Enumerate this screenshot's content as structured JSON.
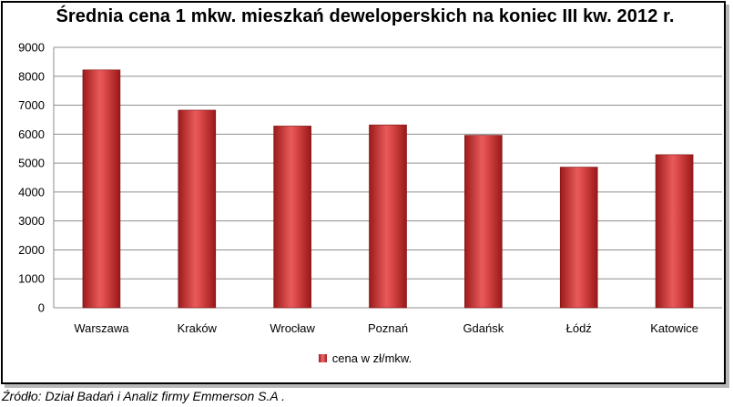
{
  "chart_data": {
    "type": "bar",
    "title": "Średnia cena 1 mkw. mieszkań deweloperskich na koniec III kw. 2012 r.",
    "categories": [
      "Warszawa",
      "Kraków",
      "Wrocław",
      "Poznań",
      "Gdańsk",
      "Łódź",
      "Katowice"
    ],
    "series": [
      {
        "name": "cena w zł/mkw.",
        "values": [
          8220,
          6830,
          6280,
          6320,
          5960,
          4860,
          5290
        ]
      }
    ],
    "ylim": [
      0,
      9000
    ],
    "yticks": [
      0,
      1000,
      2000,
      3000,
      4000,
      5000,
      6000,
      7000,
      8000,
      9000
    ],
    "grid": true,
    "legend_position": "bottom",
    "bar_color": "#c0272d"
  },
  "source": "Źródło: Dział Badań i Analiz firmy Emmerson S.A ."
}
